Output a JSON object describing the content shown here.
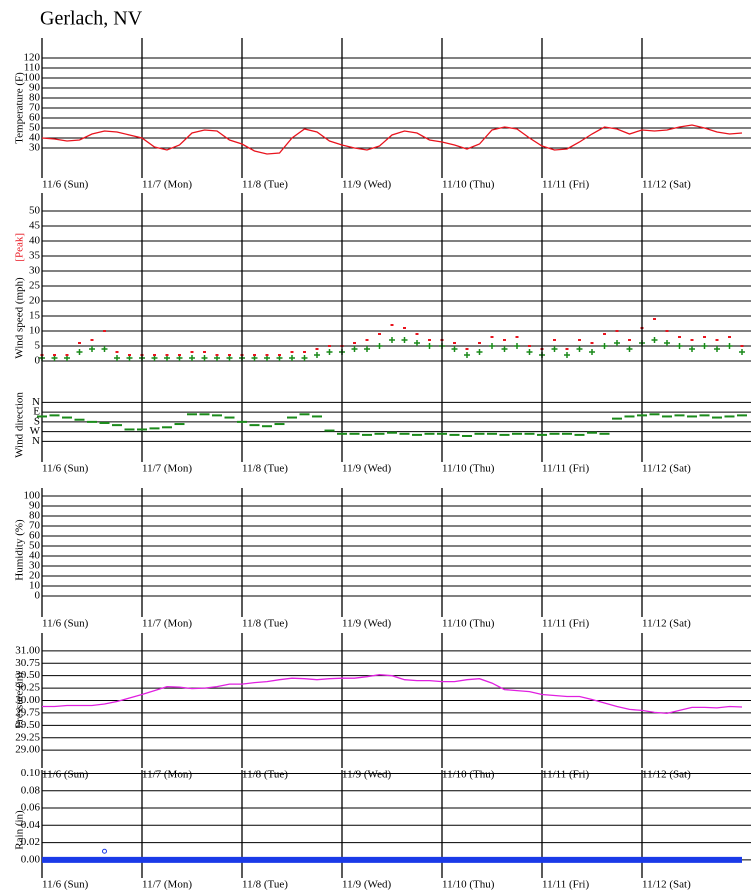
{
  "title": "Gerlach, NV",
  "chart_data": [
    {
      "type": "line",
      "ylabel": "Temperature (F)",
      "x": [
        0,
        3,
        6,
        9,
        12,
        15,
        18,
        21,
        24,
        27,
        30,
        33,
        36,
        39,
        42,
        45,
        48,
        51,
        54,
        57,
        60,
        63,
        66,
        69,
        72,
        75,
        78,
        81,
        84,
        87,
        90,
        93,
        96,
        99,
        102,
        105,
        108,
        111,
        114,
        117,
        120,
        123,
        126,
        129,
        132,
        135,
        138,
        141,
        144,
        147,
        150,
        153,
        156,
        159,
        162,
        165,
        168
      ],
      "xlim": [
        0,
        168
      ],
      "xticks": [
        {
          "value": 0,
          "label": "11/6 (Sun)"
        },
        {
          "value": 24,
          "label": "11/7 (Mon)"
        },
        {
          "value": 48,
          "label": "11/8 (Tue)"
        },
        {
          "value": 72,
          "label": "11/9 (Wed)"
        },
        {
          "value": 96,
          "label": "11/10 (Thu)"
        },
        {
          "value": 120,
          "label": "11/11 (Fri)"
        },
        {
          "value": 144,
          "label": "11/12 (Sat)"
        }
      ],
      "ylim": [
        0,
        140
      ],
      "yticks": [
        30,
        40,
        50,
        60,
        70,
        80,
        90,
        100,
        110,
        120
      ],
      "series": [
        {
          "color": "#e8141e",
          "mode": "line",
          "values": [
            40,
            39,
            37,
            38,
            44,
            47,
            46,
            43,
            40,
            31,
            28,
            33,
            45,
            48,
            47,
            38,
            34,
            27,
            24,
            25,
            40,
            49,
            46,
            37,
            33,
            30,
            28,
            32,
            43,
            47,
            45,
            38,
            36,
            33,
            29,
            34,
            48,
            51,
            49,
            40,
            32,
            28,
            29,
            36,
            44,
            51,
            49,
            44,
            48,
            47,
            48,
            51,
            53,
            50,
            46,
            44,
            45
          ]
        }
      ]
    },
    {
      "type": "scatter",
      "ylabel": "Wind speed (mph)",
      "x": [
        0,
        3,
        6,
        9,
        12,
        15,
        18,
        21,
        24,
        27,
        30,
        33,
        36,
        39,
        42,
        45,
        48,
        51,
        54,
        57,
        60,
        63,
        66,
        69,
        72,
        75,
        78,
        81,
        84,
        87,
        90,
        93,
        96,
        99,
        102,
        105,
        108,
        111,
        114,
        117,
        120,
        123,
        126,
        129,
        132,
        135,
        138,
        141,
        144,
        147,
        150,
        153,
        156,
        159,
        162,
        165,
        168
      ],
      "xlim": [
        0,
        168
      ],
      "ylim": [
        -3,
        56
      ],
      "yticks": [
        0,
        5,
        10,
        15,
        20,
        25,
        30,
        35,
        40,
        45,
        50
      ],
      "series": [
        {
          "color": "#1a8a1a",
          "mode": "plus",
          "values": [
            1,
            1,
            1,
            3,
            4,
            4,
            1,
            1,
            1,
            1,
            1,
            1,
            1,
            1,
            1,
            1,
            1,
            1,
            1,
            1,
            1,
            1,
            2,
            3,
            3,
            4,
            4,
            5,
            7,
            7,
            6,
            5,
            5,
            4,
            2,
            3,
            5,
            4,
            5,
            3,
            2,
            4,
            2,
            4,
            3,
            5,
            6,
            4,
            6,
            7,
            6,
            5,
            4,
            5,
            4,
            5,
            3
          ]
        },
        {
          "name": "[Peak]",
          "color": "#e8141e",
          "mode": "dot",
          "values": [
            2,
            2,
            2,
            6,
            7,
            10,
            3,
            2,
            2,
            2,
            2,
            2,
            3,
            3,
            2,
            2,
            2,
            2,
            2,
            2,
            3,
            3,
            4,
            5,
            5,
            6,
            7,
            9,
            12,
            11,
            9,
            7,
            7,
            6,
            4,
            6,
            8,
            7,
            8,
            5,
            4,
            7,
            4,
            7,
            6,
            9,
            10,
            7,
            11,
            14,
            10,
            8,
            7,
            8,
            7,
            8,
            5
          ]
        }
      ]
    },
    {
      "type": "scatter",
      "ylabel": "Wind direction",
      "x": [
        0,
        3,
        6,
        9,
        12,
        15,
        18,
        21,
        24,
        27,
        30,
        33,
        36,
        39,
        42,
        45,
        48,
        51,
        54,
        57,
        60,
        63,
        66,
        69,
        72,
        75,
        78,
        81,
        84,
        87,
        90,
        93,
        96,
        99,
        102,
        105,
        108,
        111,
        114,
        117,
        120,
        123,
        126,
        129,
        132,
        135,
        138,
        141,
        144,
        147,
        150,
        153,
        156,
        159,
        162,
        165,
        168
      ],
      "xlim": [
        0,
        168
      ],
      "xticks": [
        {
          "value": 0,
          "label": "11/6 (Sun)"
        },
        {
          "value": 24,
          "label": "11/7 (Mon)"
        },
        {
          "value": 48,
          "label": "11/8 (Tue)"
        },
        {
          "value": 72,
          "label": "11/9 (Wed)"
        },
        {
          "value": 96,
          "label": "11/10 (Thu)"
        },
        {
          "value": 120,
          "label": "11/11 (Fri)"
        },
        {
          "value": 144,
          "label": "11/12 (Sat)"
        }
      ],
      "ylim": [
        550,
        -280
      ],
      "yticks": [
        {
          "value": 0,
          "label": "N"
        },
        {
          "value": 90,
          "label": "E"
        },
        {
          "value": 180,
          "label": "S"
        },
        {
          "value": 270,
          "label": "W"
        },
        {
          "value": 360,
          "label": "N"
        }
      ],
      "series": [
        {
          "color": "#1a8a1a",
          "mode": "dash",
          "values": [
            130,
            120,
            140,
            160,
            180,
            190,
            210,
            250,
            250,
            240,
            230,
            200,
            110,
            110,
            120,
            140,
            180,
            210,
            220,
            200,
            140,
            110,
            130,
            260,
            290,
            290,
            300,
            290,
            280,
            290,
            300,
            290,
            290,
            300,
            310,
            290,
            290,
            300,
            290,
            290,
            300,
            290,
            290,
            300,
            280,
            290,
            150,
            130,
            120,
            110,
            130,
            120,
            130,
            120,
            140,
            130,
            120
          ]
        }
      ]
    },
    {
      "type": "line",
      "ylabel": "Humidity (%)",
      "xlim": [
        0,
        168
      ],
      "xticks": [
        {
          "value": 0,
          "label": "11/6 (Sun)"
        },
        {
          "value": 24,
          "label": "11/7 (Mon)"
        },
        {
          "value": 48,
          "label": "11/8 (Tue)"
        },
        {
          "value": 72,
          "label": "11/9 (Wed)"
        },
        {
          "value": 96,
          "label": "11/10 (Thu)"
        },
        {
          "value": 120,
          "label": "11/11 (Fri)"
        },
        {
          "value": 144,
          "label": "11/12 (Sat)"
        }
      ],
      "ylim": [
        -21,
        108
      ],
      "yticks": [
        0,
        10,
        20,
        30,
        40,
        50,
        60,
        70,
        80,
        90,
        100
      ],
      "series": []
    },
    {
      "type": "line",
      "ylabel": "Pressure (in)",
      "x": [
        0,
        3,
        6,
        9,
        12,
        15,
        18,
        21,
        24,
        27,
        30,
        33,
        36,
        39,
        42,
        45,
        48,
        51,
        54,
        57,
        60,
        63,
        66,
        69,
        72,
        75,
        78,
        81,
        84,
        87,
        90,
        93,
        96,
        99,
        102,
        105,
        108,
        111,
        114,
        117,
        120,
        123,
        126,
        129,
        132,
        135,
        138,
        141,
        144,
        147,
        150,
        153,
        156,
        159,
        162,
        165,
        168
      ],
      "xlim": [
        0,
        168
      ],
      "xticks": [
        {
          "value": 0,
          "label": "11/6 (Sun)"
        },
        {
          "value": 24,
          "label": "11/7 (Mon)"
        },
        {
          "value": 48,
          "label": "11/8 (Tue)"
        },
        {
          "value": 72,
          "label": "11/9 (Wed)"
        },
        {
          "value": 96,
          "label": "11/10 (Thu)"
        },
        {
          "value": 120,
          "label": "11/11 (Fri)"
        },
        {
          "value": 144,
          "label": "11/12 (Sat)"
        }
      ],
      "ylim": [
        28.64,
        31.36
      ],
      "yticks": [
        {
          "value": 29,
          "label": "29.00"
        },
        {
          "value": 29.25,
          "label": "29.25"
        },
        {
          "value": 29.5,
          "label": "29.50"
        },
        {
          "value": 29.75,
          "label": "29.75"
        },
        {
          "value": 30,
          "label": "30.00"
        },
        {
          "value": 30.25,
          "label": "30.25"
        },
        {
          "value": 30.5,
          "label": "30.50"
        },
        {
          "value": 30.75,
          "label": "30.75"
        },
        {
          "value": 31,
          "label": "31.00"
        }
      ],
      "series": [
        {
          "color": "#e020e0",
          "mode": "line",
          "values": [
            29.88,
            29.88,
            29.9,
            29.9,
            29.9,
            29.93,
            29.98,
            30.05,
            30.12,
            30.2,
            30.28,
            30.27,
            30.24,
            30.25,
            30.28,
            30.33,
            30.33,
            30.36,
            30.38,
            30.42,
            30.45,
            30.44,
            30.42,
            30.44,
            30.45,
            30.45,
            30.48,
            30.52,
            30.5,
            30.42,
            30.4,
            30.4,
            30.38,
            30.38,
            30.42,
            30.44,
            30.35,
            30.22,
            30.2,
            30.18,
            30.12,
            30.1,
            30.08,
            30.08,
            30.02,
            29.95,
            29.88,
            29.82,
            29.8,
            29.76,
            29.74,
            29.8,
            29.86,
            29.86,
            29.85,
            29.88,
            29.87
          ]
        }
      ]
    },
    {
      "type": "line",
      "ylabel": "Rain (in)",
      "xlim": [
        0,
        168
      ],
      "xticks": [
        {
          "value": 0,
          "label": "11/6 (Sun)"
        },
        {
          "value": 24,
          "label": "11/7 (Mon)"
        },
        {
          "value": 48,
          "label": "11/8 (Tue)"
        },
        {
          "value": 72,
          "label": "11/9 (Wed)"
        },
        {
          "value": 96,
          "label": "11/10 (Thu)"
        },
        {
          "value": 120,
          "label": "11/11 (Fri)"
        },
        {
          "value": 144,
          "label": "11/12 (Sat)"
        }
      ],
      "ylim": [
        -0.021,
        0.104
      ],
      "yticks": [
        {
          "value": 0,
          "label": "0.00"
        },
        {
          "value": 0.02,
          "label": "0.02"
        },
        {
          "value": 0.04,
          "label": "0.04"
        },
        {
          "value": 0.06,
          "label": "0.06"
        },
        {
          "value": 0.08,
          "label": "0.08"
        },
        {
          "value": 0.1,
          "label": "0.10"
        }
      ],
      "series": [
        {
          "color": "#1a3ae8",
          "mode": "thick",
          "x": [
            0,
            168
          ],
          "values": [
            0,
            0
          ]
        },
        {
          "color": "#1a3ae8",
          "mode": "circle",
          "x": [
            15
          ],
          "values": [
            0.01
          ]
        }
      ]
    }
  ]
}
